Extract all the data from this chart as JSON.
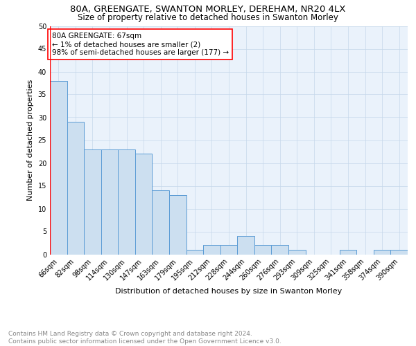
{
  "title1": "80A, GREENGATE, SWANTON MORLEY, DEREHAM, NR20 4LX",
  "title2": "Size of property relative to detached houses in Swanton Morley",
  "xlabel": "Distribution of detached houses by size in Swanton Morley",
  "ylabel": "Number of detached properties",
  "categories": [
    "66sqm",
    "82sqm",
    "98sqm",
    "114sqm",
    "130sqm",
    "147sqm",
    "163sqm",
    "179sqm",
    "195sqm",
    "212sqm",
    "228sqm",
    "244sqm",
    "260sqm",
    "276sqm",
    "293sqm",
    "309sqm",
    "325sqm",
    "341sqm",
    "358sqm",
    "374sqm",
    "390sqm"
  ],
  "values": [
    38,
    29,
    23,
    23,
    23,
    22,
    14,
    13,
    1,
    2,
    2,
    4,
    2,
    2,
    1,
    0,
    0,
    1,
    0,
    1,
    1
  ],
  "bar_color": "#ccdff0",
  "bar_edge_color": "#5b9bd5",
  "annotation_text": "80A GREENGATE: 67sqm\n← 1% of detached houses are smaller (2)\n98% of semi-detached houses are larger (177) →",
  "annotation_box_color": "white",
  "annotation_box_edge_color": "red",
  "vline_color": "red",
  "ylim": [
    0,
    50
  ],
  "yticks": [
    0,
    5,
    10,
    15,
    20,
    25,
    30,
    35,
    40,
    45,
    50
  ],
  "footer_line1": "Contains HM Land Registry data © Crown copyright and database right 2024.",
  "footer_line2": "Contains public sector information licensed under the Open Government Licence v3.0.",
  "plot_bg_color": "#eaf2fb",
  "grid_color": "#c5d8ea",
  "title1_fontsize": 9.5,
  "title2_fontsize": 8.5,
  "xlabel_fontsize": 8,
  "ylabel_fontsize": 8,
  "tick_fontsize": 7,
  "footer_fontsize": 6.5,
  "annotation_fontsize": 7.5
}
